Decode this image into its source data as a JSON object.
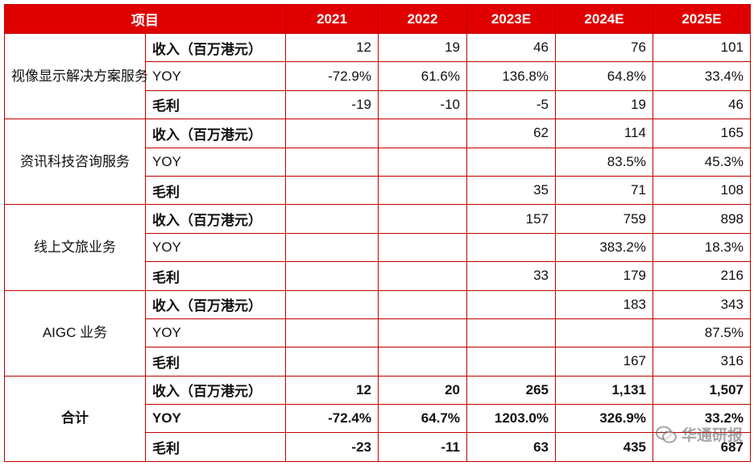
{
  "header": {
    "item": "项目",
    "years": [
      "2021",
      "2022",
      "2023E",
      "2024E",
      "2025E"
    ]
  },
  "segments": [
    {
      "name": "视像显示解决方案服务",
      "rows": [
        {
          "label": "收入（百万港元）",
          "bold_label": true,
          "values": [
            "12",
            "19",
            "46",
            "76",
            "101"
          ]
        },
        {
          "label": "YOY",
          "bold_label": false,
          "values": [
            "-72.9%",
            "61.6%",
            "136.8%",
            "64.8%",
            "33.4%"
          ]
        },
        {
          "label": "毛利",
          "bold_label": true,
          "values": [
            "-19",
            "-10",
            "-5",
            "19",
            "46"
          ]
        }
      ]
    },
    {
      "name": "资讯科技咨询服务",
      "rows": [
        {
          "label": "收入（百万港元）",
          "bold_label": true,
          "values": [
            "",
            "",
            "62",
            "114",
            "165"
          ]
        },
        {
          "label": "YOY",
          "bold_label": false,
          "values": [
            "",
            "",
            "",
            "83.5%",
            "45.3%"
          ]
        },
        {
          "label": "毛利",
          "bold_label": true,
          "values": [
            "",
            "",
            "35",
            "71",
            "108"
          ]
        }
      ]
    },
    {
      "name": "线上文旅业务",
      "rows": [
        {
          "label": "收入（百万港元）",
          "bold_label": true,
          "values": [
            "",
            "",
            "157",
            "759",
            "898"
          ]
        },
        {
          "label": "YOY",
          "bold_label": false,
          "values": [
            "",
            "",
            "",
            "383.2%",
            "18.3%"
          ]
        },
        {
          "label": "毛利",
          "bold_label": true,
          "values": [
            "",
            "",
            "33",
            "179",
            "216"
          ]
        }
      ]
    },
    {
      "name": "AIGC 业务",
      "rows": [
        {
          "label": "收入（百万港元）",
          "bold_label": true,
          "values": [
            "",
            "",
            "",
            "183",
            "343"
          ]
        },
        {
          "label": "YOY",
          "bold_label": false,
          "values": [
            "",
            "",
            "",
            "",
            "87.5%"
          ]
        },
        {
          "label": "毛利",
          "bold_label": true,
          "values": [
            "",
            "",
            "",
            "167",
            "316"
          ]
        }
      ]
    },
    {
      "name": "合计",
      "total": true,
      "rows": [
        {
          "label": "收入（百万港元）",
          "bold_label": true,
          "values": [
            "12",
            "20",
            "265",
            "1,131",
            "1,507"
          ]
        },
        {
          "label": "YOY",
          "bold_label": true,
          "values": [
            "-72.4%",
            "64.7%",
            "1203.0%",
            "326.9%",
            "33.2%"
          ]
        },
        {
          "label": "毛利",
          "bold_label": true,
          "values": [
            "-23",
            "-11",
            "63",
            "435",
            "687"
          ]
        }
      ]
    }
  ],
  "watermark": {
    "text": "华通研报",
    "icon": "wechat-icon"
  }
}
